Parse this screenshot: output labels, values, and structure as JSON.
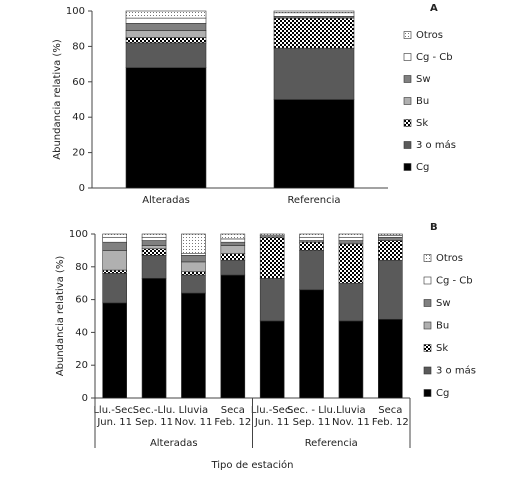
{
  "chart_data": [
    {
      "type": "stacked-bar",
      "panel": "A",
      "ylabel": "Abundancia relativa (%)",
      "categories": [
        "Alteradas",
        "Referencia"
      ],
      "ylim": [
        0,
        100
      ],
      "yticks": [
        0,
        20,
        40,
        60,
        80,
        100
      ],
      "series": [
        {
          "name": "Cg",
          "color": "#000000",
          "values": [
            68,
            50
          ]
        },
        {
          "name": "3 o más",
          "color": "#5a5a5a",
          "values": [
            14,
            29
          ]
        },
        {
          "name": "Sk",
          "color": "#ffffff",
          "pattern": "checker",
          "values": [
            3,
            17
          ]
        },
        {
          "name": "Bu",
          "color": "#b0b0b0",
          "values": [
            4,
            0
          ]
        },
        {
          "name": "Sw",
          "color": "#808080",
          "values": [
            4,
            1
          ]
        },
        {
          "name": "Cg - Cb",
          "color": "#ffffff",
          "values": [
            3,
            2
          ]
        },
        {
          "name": "Otros",
          "color": "#ffffff",
          "pattern": "dots",
          "values": [
            4,
            1
          ]
        }
      ]
    },
    {
      "type": "stacked-bar",
      "panel": "B",
      "ylabel": "Abundancia relativa (%)",
      "xlabel": "Tipo de estación",
      "groups": [
        {
          "name": "Alteradas",
          "categories": [
            [
              "Llu.-Sec.",
              "Jun. 11"
            ],
            [
              "Sec.-Llu.",
              "Sep. 11"
            ],
            [
              "Lluvia",
              "Nov. 11"
            ],
            [
              "Seca",
              "Feb. 12"
            ]
          ]
        },
        {
          "name": "Referencia",
          "categories": [
            [
              "Llu.-Sec.",
              "Jun. 11"
            ],
            [
              "Sec. - Llu.",
              "Sep. 11"
            ],
            [
              "Lluvia",
              "Nov. 11"
            ],
            [
              "Seca",
              "Feb. 12"
            ]
          ]
        }
      ],
      "ylim": [
        0,
        100
      ],
      "yticks": [
        0,
        20,
        40,
        60,
        80,
        100
      ],
      "series": [
        {
          "name": "Cg",
          "color": "#000000",
          "values": [
            58,
            73,
            64,
            75,
            47,
            66,
            47,
            48
          ]
        },
        {
          "name": "3 o más",
          "color": "#5a5a5a",
          "values": [
            18,
            14,
            11,
            9,
            26,
            24,
            23,
            36
          ]
        },
        {
          "name": "Sk",
          "color": "#ffffff",
          "pattern": "checker",
          "values": [
            2,
            4,
            2,
            4,
            25,
            5,
            24,
            12
          ]
        },
        {
          "name": "Bu",
          "color": "#b0b0b0",
          "values": [
            12,
            2,
            6,
            5,
            0,
            0,
            0,
            0
          ]
        },
        {
          "name": "Sw",
          "color": "#808080",
          "values": [
            5,
            3,
            4,
            2,
            1,
            1,
            2,
            2
          ]
        },
        {
          "name": "Cg - Cb",
          "color": "#ffffff",
          "values": [
            3,
            2,
            1,
            2,
            0,
            2,
            2,
            1
          ]
        },
        {
          "name": "Otros",
          "color": "#ffffff",
          "pattern": "dots",
          "values": [
            2,
            2,
            12,
            3,
            1,
            2,
            2,
            1
          ]
        }
      ]
    }
  ]
}
